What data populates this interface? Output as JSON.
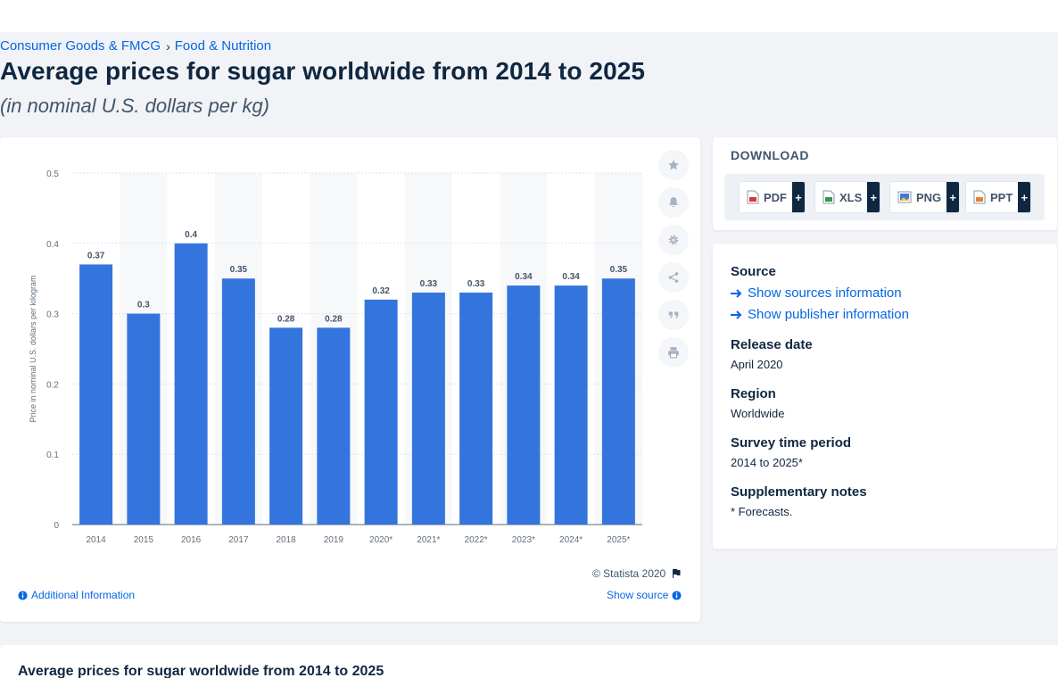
{
  "breadcrumb": [
    "Consumer Goods & FMCG",
    "Food & Nutrition"
  ],
  "breadcrumb_separator": "›",
  "title": "Average prices for sugar worldwide from 2014 to 2025",
  "subtitle": "(in nominal U.S. dollars per kg)",
  "chart_data": {
    "type": "bar",
    "categories": [
      "2014",
      "2015",
      "2016",
      "2017",
      "2018",
      "2019",
      "2020*",
      "2021*",
      "2022*",
      "2023*",
      "2024*",
      "2025*"
    ],
    "values": [
      0.37,
      0.3,
      0.4,
      0.35,
      0.28,
      0.28,
      0.32,
      0.33,
      0.33,
      0.34,
      0.34,
      0.35
    ],
    "data_labels": [
      "0.37",
      "0.3",
      "0.4",
      "0.35",
      "0.28",
      "0.28",
      "0.32",
      "0.33",
      "0.33",
      "0.34",
      "0.34",
      "0.35"
    ],
    "ylabel": "Price in nominal U.S. dollars per kilogram",
    "xlabel": "",
    "ylim": [
      0,
      0.5
    ],
    "yticks": [
      "0",
      "0.1",
      "0.2",
      "0.3",
      "0.4",
      "0.5"
    ],
    "grid": true,
    "bar_color": "#3375dd"
  },
  "chart_tools": [
    {
      "name": "star-icon",
      "label": "Favorite"
    },
    {
      "name": "bell-icon",
      "label": "Notify"
    },
    {
      "name": "gear-icon",
      "label": "Settings"
    },
    {
      "name": "share-icon",
      "label": "Share"
    },
    {
      "name": "quote-icon",
      "label": "Cite"
    },
    {
      "name": "print-icon",
      "label": "Print"
    }
  ],
  "copyright": "© Statista 2020",
  "additional_info": "Additional Information",
  "show_source": "Show source",
  "download": {
    "label": "DOWNLOAD",
    "buttons": [
      {
        "text": "PDF",
        "plus": "+",
        "color": "#d9363e"
      },
      {
        "text": "XLS",
        "plus": "+",
        "color": "#2e9a4a"
      },
      {
        "text": "PNG",
        "plus": "+",
        "color": "#3a7bd5"
      },
      {
        "text": "PPT",
        "plus": "+",
        "color": "#e8812c"
      }
    ]
  },
  "meta": {
    "source_heading": "Source",
    "show_sources": "Show sources information",
    "show_publisher": "Show publisher information",
    "release_heading": "Release date",
    "release_value": "April 2020",
    "region_heading": "Region",
    "region_value": "Worldwide",
    "survey_heading": "Survey time period",
    "survey_value": "2014 to 2025*",
    "notes_heading": "Supplementary notes",
    "notes_value": "* Forecasts."
  },
  "bottom_title": "Average prices for sugar worldwide from 2014 to 2025"
}
